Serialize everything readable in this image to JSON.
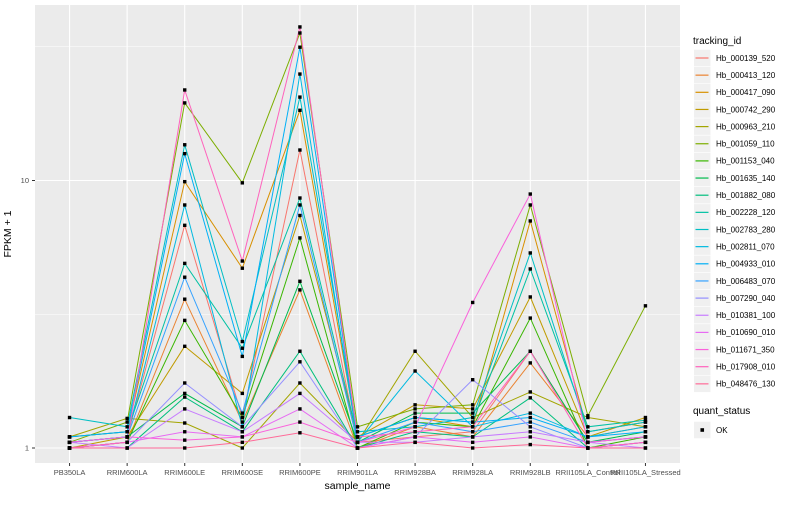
{
  "window": {
    "background": "#FFFFFF"
  },
  "chart_data": {
    "type": "line",
    "title": "",
    "xlabel": "sample_name",
    "ylabel": "FPKM + 1",
    "y_scale": "log10",
    "y_ticks": [
      1,
      10
    ],
    "y_tick_labels": [
      "1",
      "10"
    ],
    "y_minor_ticks": [
      3.162,
      31.62
    ],
    "ylim": [
      0.88,
      45
    ],
    "grid": true,
    "panel_background": "#EBEBEB",
    "gridline_color": "#FFFFFF",
    "legend_key_background": "#F0F0F0",
    "point_shape": "square",
    "point_color": "#000000",
    "categories": [
      "PB350LA",
      "RRIM600LA",
      "RRIM600LE",
      "RRIM600SE",
      "RRIM600PE",
      "RRIM901LA",
      "RRIM928BA",
      "RRIM928LA",
      "RRIM928LB",
      "RRII105LA_Control",
      "RRII105LA_Stressed"
    ],
    "series": [
      {
        "name": "Hb_000139_520",
        "color": "#F8766D",
        "values": [
          1.05,
          1.1,
          6.8,
          1.3,
          13.0,
          1.05,
          1.1,
          1.15,
          2.3,
          1.05,
          1.1
        ]
      },
      {
        "name": "Hb_000413_120",
        "color": "#EA8331",
        "values": [
          1.0,
          1.05,
          3.6,
          1.25,
          3.9,
          1.0,
          1.2,
          1.1,
          2.08,
          1.1,
          1.2
        ]
      },
      {
        "name": "Hb_000417_090",
        "color": "#D89000",
        "values": [
          1.1,
          1.15,
          9.9,
          4.7,
          18.3,
          1.1,
          1.3,
          1.2,
          7.06,
          1.15,
          1.25
        ]
      },
      {
        "name": "Hb_000742_290",
        "color": "#C09B00",
        "values": [
          1.0,
          1.1,
          2.4,
          1.6,
          7.4,
          1.1,
          1.45,
          1.4,
          3.67,
          1.1,
          1.3
        ]
      },
      {
        "name": "Hb_000963_210",
        "color": "#A3A500",
        "values": [
          1.1,
          1.29,
          1.24,
          1.0,
          1.75,
          1.05,
          2.3,
          1.3,
          1.62,
          1.3,
          1.2
        ]
      },
      {
        "name": "Hb_001059_110",
        "color": "#7CAE00",
        "values": [
          1.05,
          1.25,
          19.5,
          9.8,
          35.6,
          1.2,
          1.4,
          1.45,
          8.1,
          1.32,
          3.4
        ]
      },
      {
        "name": "Hb_001153_040",
        "color": "#39B600",
        "values": [
          1.0,
          1.05,
          3.0,
          1.3,
          6.1,
          1.0,
          1.25,
          1.2,
          3.06,
          1.0,
          1.1
        ]
      },
      {
        "name": "Hb_001635_140",
        "color": "#00BB4E",
        "values": [
          1.05,
          1.1,
          1.6,
          1.2,
          4.2,
          1.05,
          1.35,
          1.35,
          2.3,
          1.05,
          1.15
        ]
      },
      {
        "name": "Hb_001882_080",
        "color": "#00BF7D",
        "values": [
          1.0,
          1.0,
          1.55,
          1.15,
          2.3,
          1.0,
          1.15,
          1.1,
          1.54,
          1.0,
          1.05
        ]
      },
      {
        "name": "Hb_002228_120",
        "color": "#00C1A3",
        "values": [
          1.1,
          1.15,
          4.9,
          2.36,
          8.6,
          1.1,
          1.3,
          1.25,
          4.67,
          1.2,
          1.27
        ]
      },
      {
        "name": "Hb_002783_280",
        "color": "#00BFC4",
        "values": [
          1.3,
          1.2,
          13.6,
          2.5,
          20.5,
          1.15,
          1.2,
          1.3,
          5.36,
          1.15,
          1.25
        ]
      },
      {
        "name": "Hb_002811_070",
        "color": "#00BAE0",
        "values": [
          1.05,
          1.1,
          8.1,
          1.2,
          25.0,
          1.05,
          1.94,
          1.2,
          1.35,
          1.1,
          1.2
        ]
      },
      {
        "name": "Hb_004933_010",
        "color": "#00B0F6",
        "values": [
          1.1,
          1.15,
          12.6,
          2.2,
          31.5,
          1.1,
          1.3,
          1.25,
          1.3,
          1.1,
          1.15
        ]
      },
      {
        "name": "Hb_006483_070",
        "color": "#35A2FF",
        "values": [
          1.05,
          1.1,
          4.35,
          1.35,
          8.1,
          1.05,
          1.25,
          1.15,
          1.25,
          1.05,
          1.1
        ]
      },
      {
        "name": "Hb_007290_040",
        "color": "#9590FF",
        "values": [
          1.0,
          1.05,
          1.75,
          1.2,
          2.1,
          1.0,
          1.1,
          1.8,
          1.2,
          1.0,
          1.05
        ]
      },
      {
        "name": "Hb_010381_100",
        "color": "#C77CFF",
        "values": [
          1.05,
          1.0,
          1.4,
          1.15,
          1.6,
          1.05,
          1.05,
          1.1,
          1.15,
          1.05,
          1.0
        ]
      },
      {
        "name": "Hb_010690_010",
        "color": "#E76BF3",
        "values": [
          1.0,
          1.05,
          1.15,
          1.1,
          1.4,
          1.0,
          1.1,
          1.05,
          1.1,
          1.0,
          1.05
        ]
      },
      {
        "name": "Hb_011671_350",
        "color": "#FA62DB",
        "values": [
          1.05,
          1.1,
          1.07,
          1.1,
          1.25,
          1.05,
          1.2,
          3.5,
          8.9,
          1.05,
          1.1
        ]
      },
      {
        "name": "Hb_017908_010",
        "color": "#FF62BC",
        "values": [
          1.0,
          1.05,
          21.8,
          5.0,
          37.5,
          1.1,
          1.15,
          1.2,
          2.3,
          1.0,
          1.05
        ]
      },
      {
        "name": "Hb_048476_130",
        "color": "#FF6A98",
        "values": [
          1.0,
          1.0,
          1.0,
          1.05,
          1.14,
          1.0,
          1.05,
          1.0,
          1.03,
          1.0,
          1.0
        ]
      }
    ],
    "legend_tracking": {
      "title": "tracking_id"
    },
    "legend_quant": {
      "title": "quant_status",
      "entries": [
        "OK"
      ]
    },
    "legend_position": "right"
  }
}
